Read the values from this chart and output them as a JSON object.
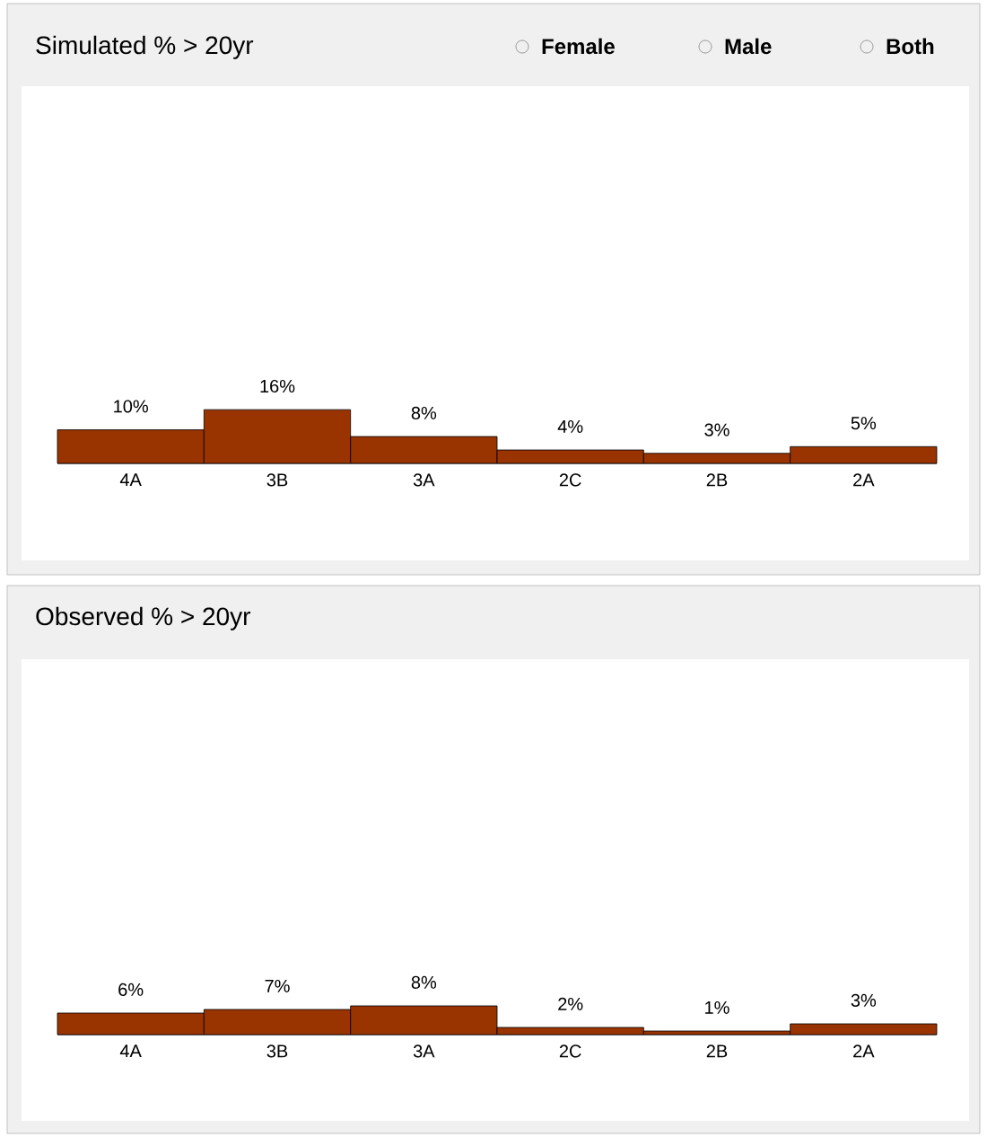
{
  "chart_data": [
    {
      "type": "bar",
      "title": "Simulated % > 20yr",
      "categories": [
        "4A",
        "3B",
        "3A",
        "2C",
        "2B",
        "2A"
      ],
      "values": [
        10,
        16,
        8,
        4,
        3,
        5
      ],
      "value_labels": [
        "10%",
        "16%",
        "8%",
        "4%",
        "3%",
        "5%"
      ],
      "color": "#993300",
      "tick_labels": "x",
      "annotations": [
        "Female",
        "Male",
        "Both"
      ]
    },
    {
      "type": "bar",
      "title": "Observed % > 20yr",
      "categories": [
        "4A",
        "3B",
        "3A",
        "2C",
        "2B",
        "2A"
      ],
      "values": [
        6,
        7,
        8,
        2,
        1,
        3
      ],
      "value_labels": [
        "6%",
        "7%",
        "8%",
        "2%",
        "1%",
        "3%"
      ],
      "color": "#993300",
      "tick_labels": "x"
    }
  ]
}
